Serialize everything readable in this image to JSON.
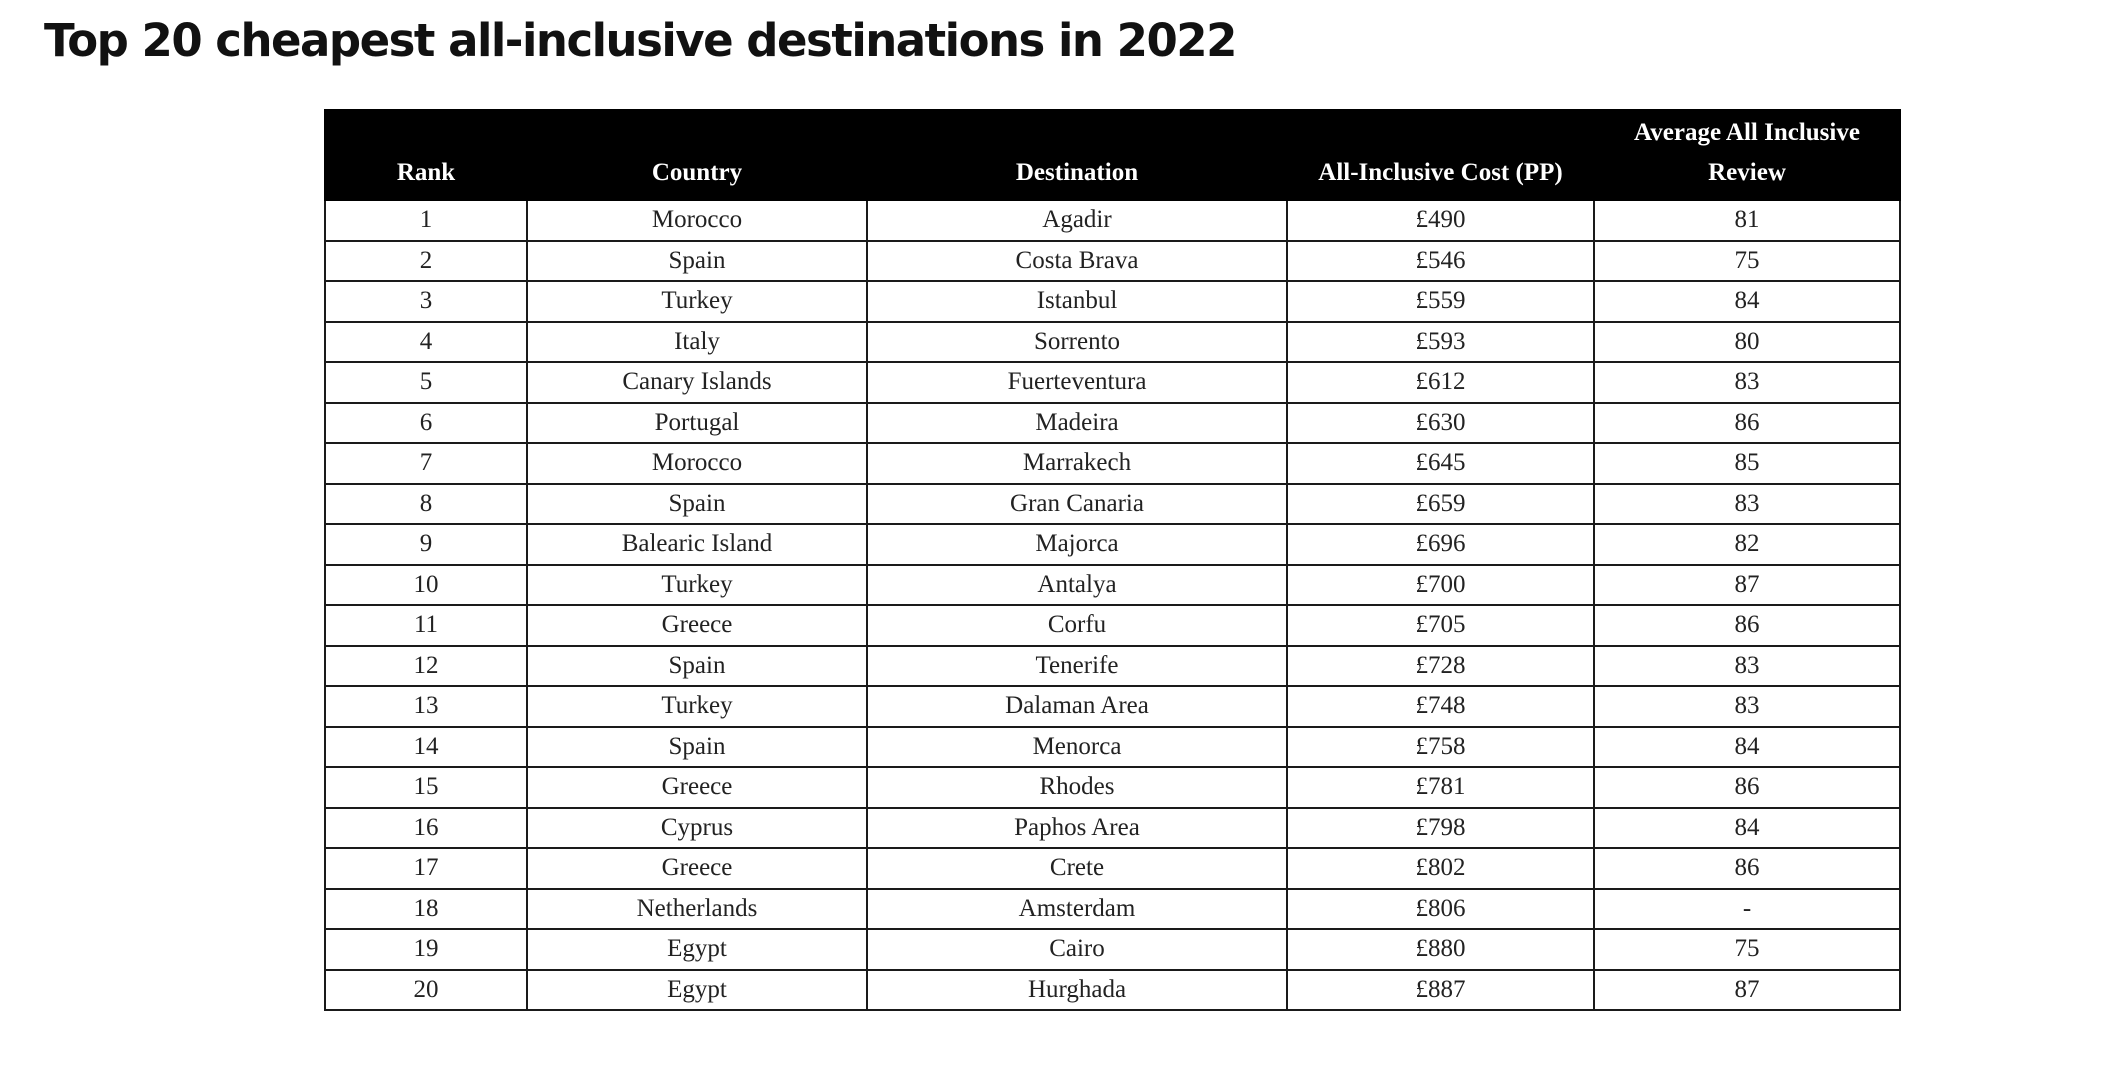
{
  "title": "Top 20 cheapest all-inclusive destinations in 2022",
  "chart_data": {
    "type": "table",
    "title": "Top 20 cheapest all-inclusive destinations in 2022",
    "columns": [
      "Rank",
      "Country",
      "Destination",
      "All-Inclusive Cost (PP)",
      "Average All Inclusive Review"
    ],
    "header_fill": "#000000",
    "header_text_color": "#ffffff",
    "rows": [
      [
        "1",
        "Morocco",
        "Agadir",
        "£490",
        "81"
      ],
      [
        "2",
        "Spain",
        "Costa Brava",
        "£546",
        "75"
      ],
      [
        "3",
        "Turkey",
        "Istanbul",
        "£559",
        "84"
      ],
      [
        "4",
        "Italy",
        "Sorrento",
        "£593",
        "80"
      ],
      [
        "5",
        "Canary Islands",
        "Fuerteventura",
        "£612",
        "83"
      ],
      [
        "6",
        "Portugal",
        "Madeira",
        "£630",
        "86"
      ],
      [
        "7",
        "Morocco",
        "Marrakech",
        "£645",
        "85"
      ],
      [
        "8",
        "Spain",
        "Gran Canaria",
        "£659",
        "83"
      ],
      [
        "9",
        "Balearic Island",
        "Majorca",
        "£696",
        "82"
      ],
      [
        "10",
        "Turkey",
        "Antalya",
        "£700",
        "87"
      ],
      [
        "11",
        "Greece",
        "Corfu",
        "£705",
        "86"
      ],
      [
        "12",
        "Spain",
        "Tenerife",
        "£728",
        "83"
      ],
      [
        "13",
        "Turkey",
        "Dalaman Area",
        "£748",
        "83"
      ],
      [
        "14",
        "Spain",
        "Menorca",
        "£758",
        "84"
      ],
      [
        "15",
        "Greece",
        "Rhodes",
        "£781",
        "86"
      ],
      [
        "16",
        "Cyprus",
        "Paphos Area",
        "£798",
        "84"
      ],
      [
        "17",
        "Greece",
        "Crete",
        "£802",
        "86"
      ],
      [
        "18",
        "Netherlands",
        "Amsterdam",
        "£806",
        "-"
      ],
      [
        "19",
        "Egypt",
        "Cairo",
        "£880",
        "75"
      ],
      [
        "20",
        "Egypt",
        "Hurghada",
        "£887",
        "87"
      ]
    ]
  }
}
